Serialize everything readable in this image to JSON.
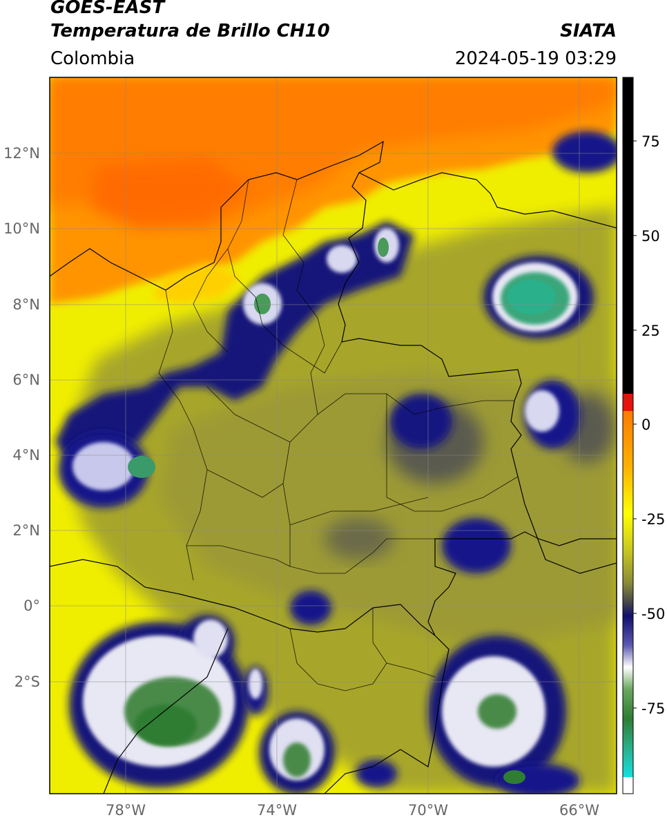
{
  "header": {
    "satellite": "GOES-EAST",
    "product": "Temperatura de Brillo CH10",
    "organization": "SIATA",
    "region": "Colombia",
    "timestamp": "2024-05-19 03:29"
  },
  "map": {
    "lat_ticks": [
      "12°N",
      "10°N",
      "8°N",
      "6°N",
      "4°N",
      "2°N",
      "0°",
      "2°S"
    ],
    "lon_ticks": [
      "78°W",
      "74°W",
      "70°W",
      "66°W"
    ]
  },
  "colorbar": {
    "ticks": [
      "75",
      "50",
      "25",
      "0",
      "-25",
      "-50",
      "-75"
    ],
    "colors": {
      "black": "#000000",
      "red": "#e8120c",
      "orange": "#ff8c00",
      "yellow": "#ffff00",
      "olive": "#a8a830",
      "darkgray": "#4a4a4a",
      "navy": "#10106e",
      "white": "#ffffff",
      "green": "#2e7d32",
      "teal": "#2ab08a",
      "cyan": "#12e0e0"
    }
  }
}
